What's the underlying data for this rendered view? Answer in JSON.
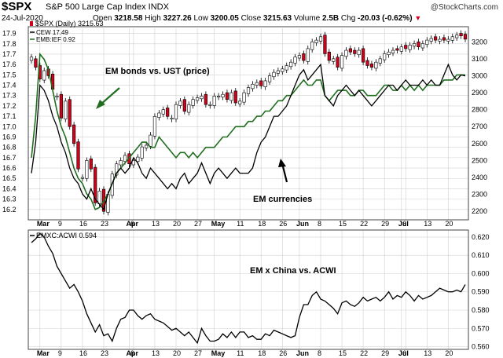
{
  "header": {
    "symbol": "$SPX",
    "description": "S&P 500 Large Cap Index INDX",
    "credit": "@StockCharts.com",
    "date": "24-Jul-2020",
    "open_label": "Open",
    "open": "3218.58",
    "high_label": "High",
    "high": "3227.26",
    "low_label": "Low",
    "low": "3200.05",
    "close_label": "Close",
    "close": "3215.63",
    "volume_label": "Volume",
    "volume": "2.5B",
    "chg_label": "Chg",
    "chg": "-20.03 (-0.62%)"
  },
  "legend": {
    "spx": "$SPX (Daily) 3215.63",
    "cew": "CEW 17.49",
    "emb": "EMB:IEF 0.92",
    "lower": "EMXC:ACWI 0.594"
  },
  "annotations": {
    "bonds": "EM bonds vs. UST (price)",
    "currencies": "EM currencies",
    "china": "EM x China vs. ACWI"
  },
  "colors": {
    "up": "#ffffff",
    "down": "#d0011b",
    "cew": "#000000",
    "emb": "#1f6e1f",
    "grid": "#d0d0d0"
  },
  "x_labels": [
    {
      "i": 2,
      "t": "Mar",
      "bold": true
    },
    {
      "i": 7,
      "t": "9"
    },
    {
      "i": 12,
      "t": "16"
    },
    {
      "i": 17,
      "t": "23"
    },
    {
      "i": 23,
      "t": "Apr",
      "bold": true
    },
    {
      "i": 24,
      "t": "6"
    },
    {
      "i": 29,
      "t": "13"
    },
    {
      "i": 34,
      "t": "20"
    },
    {
      "i": 39,
      "t": "27"
    },
    {
      "i": 43,
      "t": "May",
      "bold": true
    },
    {
      "i": 49,
      "t": "11"
    },
    {
      "i": 54,
      "t": "18"
    },
    {
      "i": 59,
      "t": "26"
    },
    {
      "i": 63,
      "t": "Jun",
      "bold": true
    },
    {
      "i": 68,
      "t": "8"
    },
    {
      "i": 73,
      "t": "15"
    },
    {
      "i": 78,
      "t": "22"
    },
    {
      "i": 83,
      "t": "29"
    },
    {
      "i": 87,
      "t": "Jul",
      "bold": true
    },
    {
      "i": 88,
      "t": "6"
    },
    {
      "i": 93,
      "t": "13"
    },
    {
      "i": 98,
      "t": "20"
    }
  ],
  "chart_data": [
    {
      "type": "line",
      "title": "$SPX S&P 500 Large Cap Index INDX",
      "x_count": 103,
      "left_axis": {
        "ticks": [
          "16.2",
          "16.3",
          "16.4",
          "16.5",
          "16.6",
          "16.7",
          "16.8",
          "16.9",
          "17.0",
          "17.1",
          "17.2",
          "17.3",
          "17.4",
          "17.5",
          "17.6",
          "17.7",
          "17.8",
          "17.9"
        ],
        "ylim": [
          16.1,
          17.95
        ]
      },
      "right_axis": {
        "ticks": [
          "2200",
          "2300",
          "2400",
          "2500",
          "2600",
          "2700",
          "2800",
          "2900",
          "3000",
          "3100",
          "3200"
        ],
        "ylim": [
          2150,
          3280
        ]
      },
      "spx_close": [
        3090,
        3050,
        2980,
        3030,
        3000,
        2920,
        2880,
        2750,
        2850,
        2700,
        2600,
        2450,
        2400,
        2500,
        2450,
        2250,
        2320,
        2200,
        2300,
        2420,
        2480,
        2500,
        2530,
        2480,
        2500,
        2520,
        2580,
        2590,
        2650,
        2760,
        2780,
        2800,
        2760,
        2750,
        2830,
        2850,
        2790,
        2830,
        2860,
        2870,
        2880,
        2830,
        2830,
        2880,
        2880,
        2890,
        2860,
        2900,
        2840,
        2850,
        2900,
        2930,
        2950,
        2960,
        2940,
        2970,
        3000,
        3020,
        3030,
        3040,
        3060,
        3080,
        3110,
        3120,
        3090,
        3160,
        3200,
        3210,
        3230,
        3130,
        3090,
        3100,
        3050,
        3120,
        3150,
        3140,
        3130,
        3150,
        3080,
        3060,
        3050,
        3080,
        3100,
        3130,
        3140,
        3150,
        3150,
        3170,
        3160,
        3180,
        3190,
        3170,
        3190,
        3210,
        3220,
        3210,
        3215,
        3210,
        3215,
        3230,
        3240,
        3235,
        3215.63
      ],
      "spx_body_color": [
        "u",
        "d",
        "d",
        "u",
        "d",
        "d",
        "u",
        "d",
        "u",
        "d",
        "d",
        "d",
        "u",
        "u",
        "d",
        "d",
        "u",
        "d",
        "u",
        "u",
        "u",
        "u",
        "u",
        "d",
        "u",
        "u",
        "u",
        "u",
        "u",
        "u",
        "u",
        "u",
        "d",
        "u",
        "u",
        "u",
        "d",
        "u",
        "u",
        "u",
        "u",
        "d",
        "u",
        "u",
        "u",
        "u",
        "d",
        "u",
        "d",
        "u",
        "u",
        "u",
        "u",
        "u",
        "d",
        "u",
        "u",
        "u",
        "u",
        "u",
        "u",
        "u",
        "u",
        "u",
        "d",
        "u",
        "u",
        "u",
        "u",
        "d",
        "d",
        "u",
        "d",
        "u",
        "u",
        "d",
        "d",
        "u",
        "d",
        "d",
        "d",
        "u",
        "u",
        "u",
        "u",
        "u",
        "d",
        "u",
        "d",
        "u",
        "u",
        "d",
        "u",
        "u",
        "u",
        "d",
        "u",
        "d",
        "u",
        "u",
        "u",
        "d",
        "d"
      ],
      "series": [
        {
          "name": "CEW",
          "values": [
            16.55,
            16.85,
            17.4,
            17.35,
            17.25,
            17.1,
            17.0,
            16.85,
            16.75,
            16.6,
            16.5,
            16.45,
            16.35,
            16.3,
            16.4,
            16.3,
            16.25,
            16.2,
            16.35,
            16.45,
            16.55,
            16.6,
            16.55,
            16.6,
            16.7,
            16.65,
            16.55,
            16.5,
            16.6,
            16.55,
            16.5,
            16.45,
            16.4,
            16.45,
            16.4,
            16.5,
            16.55,
            16.45,
            16.5,
            16.55,
            16.65,
            16.55,
            16.45,
            16.55,
            16.6,
            16.55,
            16.5,
            16.55,
            16.6,
            16.55,
            16.55,
            16.55,
            16.6,
            16.75,
            16.85,
            16.9,
            17.0,
            17.1,
            17.1,
            17.15,
            17.2,
            17.3,
            17.4,
            17.5,
            17.55,
            17.45,
            17.5,
            17.55,
            17.6,
            17.3,
            17.25,
            17.2,
            17.3,
            17.35,
            17.4,
            17.35,
            17.3,
            17.35,
            17.3,
            17.25,
            17.2,
            17.25,
            17.3,
            17.35,
            17.4,
            17.4,
            17.35,
            17.4,
            17.45,
            17.4,
            17.4,
            17.4,
            17.45,
            17.4,
            17.45,
            17.4,
            17.4,
            17.5,
            17.6,
            17.5,
            17.45,
            17.5,
            17.49
          ]
        },
        {
          "name": "EMB:IEF",
          "values": [
            16.7,
            17.1,
            17.7,
            17.65,
            17.55,
            17.35,
            17.15,
            17.0,
            16.9,
            16.75,
            16.6,
            16.5,
            16.45,
            16.35,
            16.3,
            16.2,
            16.22,
            16.28,
            16.35,
            16.45,
            16.55,
            16.6,
            16.65,
            16.7,
            16.75,
            16.8,
            16.85,
            16.85,
            16.8,
            16.8,
            16.9,
            16.85,
            16.8,
            16.75,
            16.7,
            16.75,
            16.75,
            16.7,
            16.75,
            16.7,
            16.75,
            16.8,
            16.8,
            16.8,
            16.85,
            16.9,
            16.9,
            16.95,
            17.0,
            17.0,
            17.0,
            17.05,
            17.05,
            17.1,
            17.1,
            17.15,
            17.15,
            17.2,
            17.25,
            17.25,
            17.3,
            17.3,
            17.35,
            17.4,
            17.45,
            17.4,
            17.4,
            17.45,
            17.45,
            17.3,
            17.25,
            17.3,
            17.35,
            17.35,
            17.35,
            17.3,
            17.3,
            17.35,
            17.35,
            17.3,
            17.3,
            17.3,
            17.35,
            17.4,
            17.4,
            17.35,
            17.35,
            17.4,
            17.35,
            17.4,
            17.35,
            17.4,
            17.35,
            17.4,
            17.4,
            17.4,
            17.4,
            17.45,
            17.45,
            17.45,
            17.5,
            17.5,
            17.5
          ]
        }
      ]
    },
    {
      "type": "line",
      "title": "EMXC:ACWI 0.594",
      "x_count": 103,
      "ylim": [
        0.5585,
        0.623
      ],
      "ticks": [
        "0.560",
        "0.570",
        "0.580",
        "0.590",
        "0.600",
        "0.610",
        "0.620"
      ],
      "series": [
        {
          "name": "EMXC:ACWI",
          "values": [
            0.617,
            0.619,
            0.622,
            0.62,
            0.615,
            0.611,
            0.604,
            0.6,
            0.596,
            0.592,
            0.594,
            0.59,
            0.585,
            0.578,
            0.573,
            0.568,
            0.572,
            0.566,
            0.567,
            0.563,
            0.57,
            0.575,
            0.576,
            0.58,
            0.58,
            0.577,
            0.575,
            0.577,
            0.578,
            0.575,
            0.574,
            0.573,
            0.571,
            0.569,
            0.57,
            0.568,
            0.566,
            0.568,
            0.565,
            0.562,
            0.57,
            0.566,
            0.563,
            0.563,
            0.564,
            0.567,
            0.565,
            0.568,
            0.565,
            0.568,
            0.568,
            0.565,
            0.566,
            0.564,
            0.564,
            0.567,
            0.566,
            0.569,
            0.568,
            0.567,
            0.566,
            0.565,
            0.566,
            0.576,
            0.583,
            0.583,
            0.588,
            0.59,
            0.586,
            0.585,
            0.583,
            0.581,
            0.578,
            0.584,
            0.585,
            0.583,
            0.582,
            0.584,
            0.587,
            0.585,
            0.586,
            0.587,
            0.585,
            0.587,
            0.59,
            0.586,
            0.588,
            0.587,
            0.59,
            0.588,
            0.585,
            0.588,
            0.586,
            0.587,
            0.588,
            0.59,
            0.592,
            0.591,
            0.59,
            0.59,
            0.591,
            0.59,
            0.594
          ]
        }
      ]
    }
  ]
}
